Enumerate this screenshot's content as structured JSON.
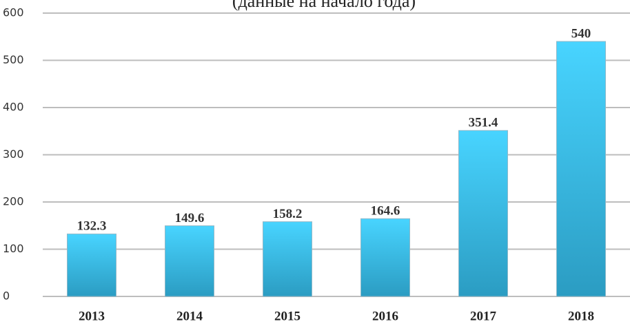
{
  "chart_data": {
    "type": "bar",
    "subtitle": "(данные на начало года)",
    "categories": [
      "2013",
      "2014",
      "2015",
      "2016",
      "2017",
      "2018"
    ],
    "values": [
      132.3,
      149.6,
      158.2,
      164.6,
      351.4,
      540
    ],
    "color": "#3fc8f4",
    "ylim": [
      0,
      600
    ],
    "yticks": [
      0,
      100,
      200,
      300,
      400,
      500,
      600
    ],
    "grid": true
  }
}
